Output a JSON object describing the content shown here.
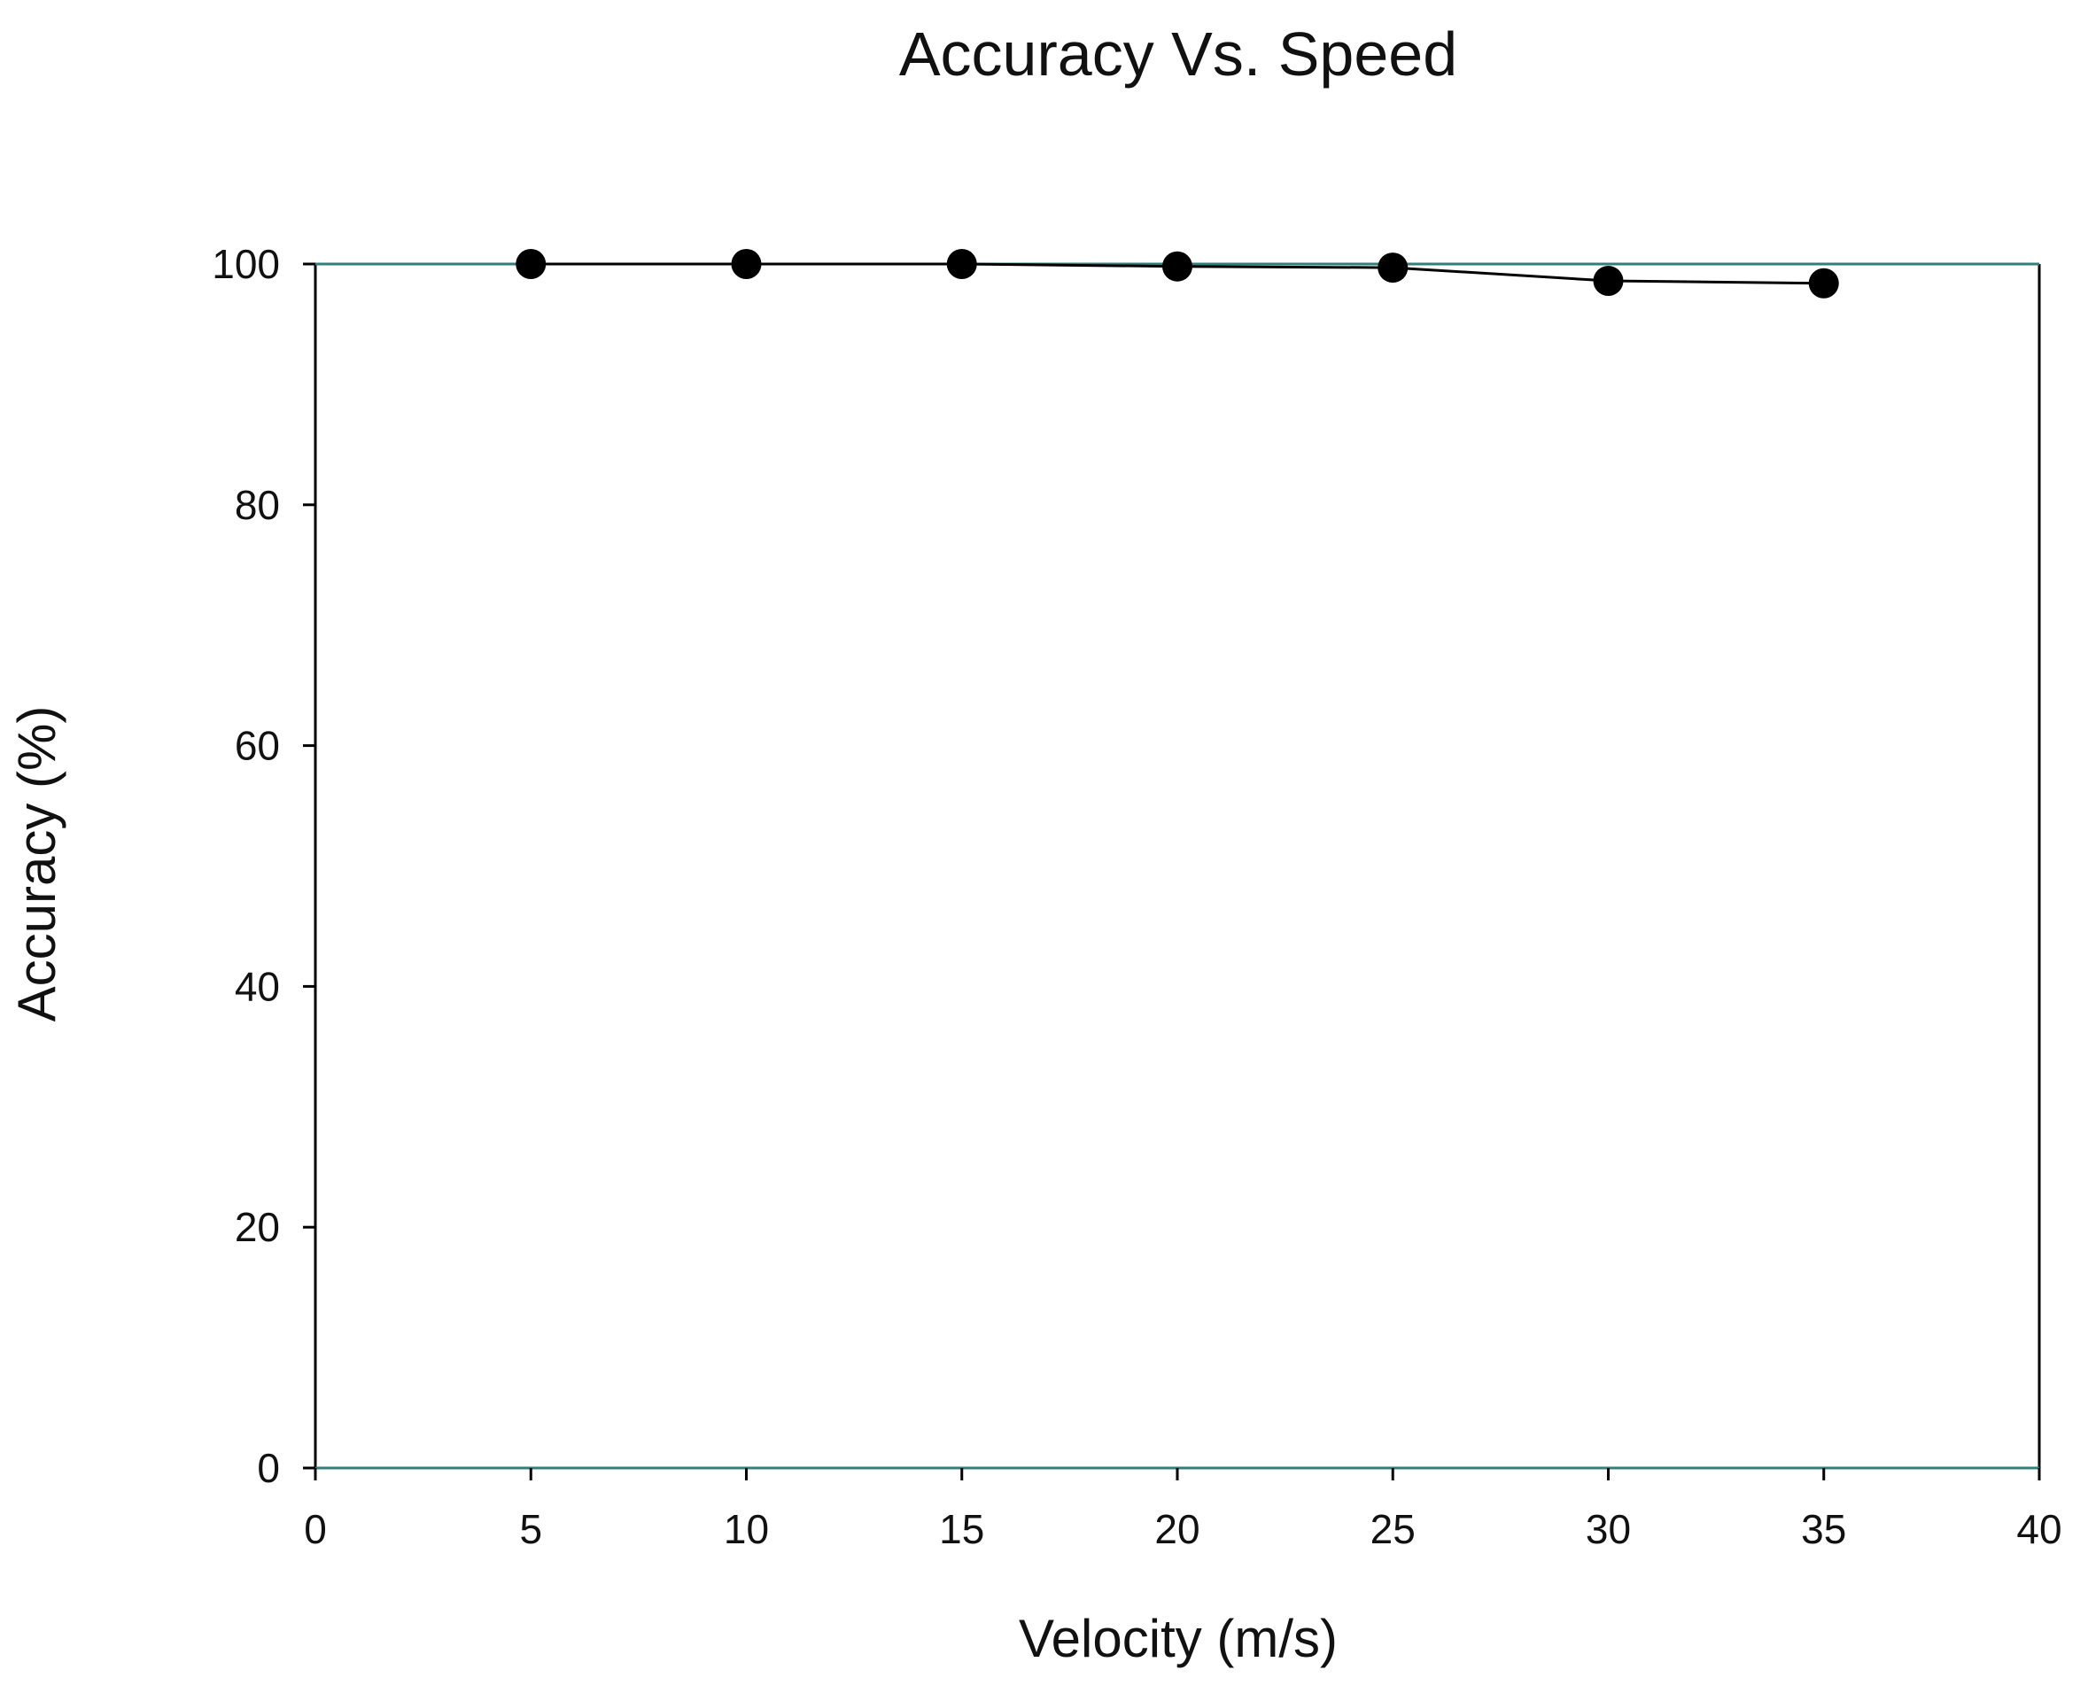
{
  "chart_data": {
    "type": "line",
    "title": "Accuracy Vs. Speed",
    "xlabel": "Velocity (m/s)",
    "ylabel": "Accuracy (%)",
    "xlim": [
      0,
      40
    ],
    "ylim": [
      0,
      100
    ],
    "x_ticks": [
      0,
      5,
      10,
      15,
      20,
      25,
      30,
      35,
      40
    ],
    "y_ticks": [
      0,
      20,
      40,
      60,
      80,
      100
    ],
    "grid": false,
    "legend": "none",
    "series": [
      {
        "x": [
          5,
          10,
          15,
          20,
          25,
          30,
          35
        ],
        "y": [
          100,
          100,
          100,
          99.8,
          99.7,
          98.6,
          98.4
        ],
        "marker": "filled-circle",
        "color": "#000000"
      }
    ],
    "reference_lines": [
      {
        "y": 100,
        "color": "#2f7f7f"
      },
      {
        "y": 0,
        "color": "#2f7f7f"
      }
    ]
  }
}
